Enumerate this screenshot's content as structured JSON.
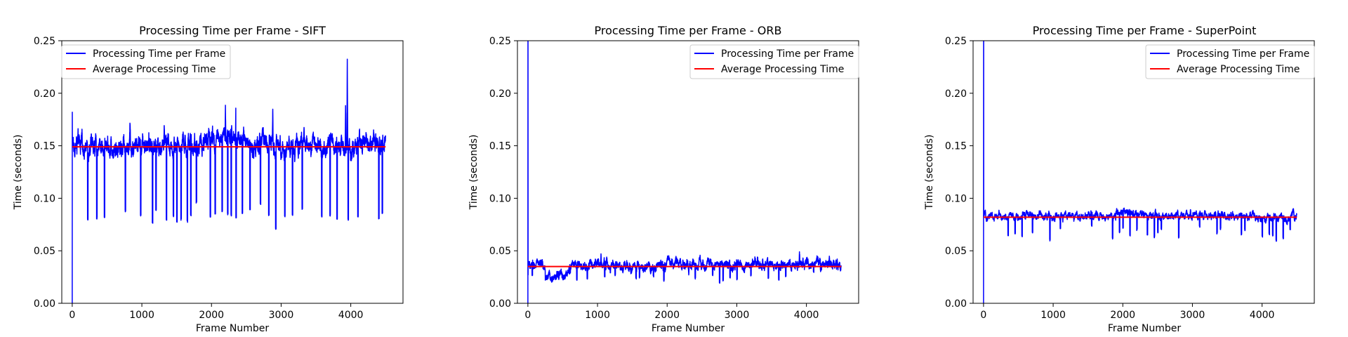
{
  "chart_data": [
    {
      "type": "line",
      "title": "Processing Time per Frame - SIFT",
      "xlabel": "Frame Number",
      "ylabel": "Time (seconds)",
      "xlim": [
        -150,
        4750
      ],
      "ylim": [
        0,
        0.25
      ],
      "xticks": [
        0,
        1000,
        2000,
        3000,
        4000
      ],
      "yticks": [
        0.0,
        0.05,
        0.1,
        0.15,
        0.2,
        0.25
      ],
      "xtick_labels": [
        "0",
        "1000",
        "2000",
        "3000",
        "4000"
      ],
      "ytick_labels": [
        "0.00",
        "0.05",
        "0.10",
        "0.15",
        "0.20",
        "0.25"
      ],
      "legend": "top-left",
      "series": [
        {
          "name": "Processing Time per Frame",
          "color": "#0000ff",
          "profile": {
            "frames": 4500,
            "base": 0.15,
            "jitter": 0.004,
            "start": [
              0.0,
              0.182,
              0.162,
              0.152
            ],
            "bands": [
              [
                1900,
                2550,
                0.008
              ],
              [
                2650,
                3000,
                0.004
              ],
              [
                3800,
                3950,
                0.003
              ]
            ],
            "bumps": [
              [
                2200,
                0.032
              ],
              [
                2350,
                0.03
              ],
              [
                2880,
                0.036
              ],
              [
                3950,
                0.081
              ],
              [
                3925,
                0.04
              ],
              [
                1100,
                0.018
              ],
              [
                1320,
                0.016
              ],
              [
                830,
                0.015
              ]
            ],
            "dips": [
              [
                220,
                0.08
              ],
              [
                350,
                0.081
              ],
              [
                460,
                0.082
              ],
              [
                760,
                0.088
              ],
              [
                980,
                0.084
              ],
              [
                1150,
                0.077
              ],
              [
                1200,
                0.089
              ],
              [
                1350,
                0.08
              ],
              [
                1450,
                0.083
              ],
              [
                1500,
                0.078
              ],
              [
                1560,
                0.08
              ],
              [
                1650,
                0.078
              ],
              [
                1700,
                0.084
              ],
              [
                1780,
                0.096
              ],
              [
                1980,
                0.083
              ],
              [
                2050,
                0.086
              ],
              [
                2150,
                0.088
              ],
              [
                2230,
                0.085
              ],
              [
                2280,
                0.084
              ],
              [
                2350,
                0.082
              ],
              [
                2440,
                0.086
              ],
              [
                2550,
                0.09
              ],
              [
                2700,
                0.095
              ],
              [
                2820,
                0.084
              ],
              [
                2920,
                0.071
              ],
              [
                3050,
                0.083
              ],
              [
                3160,
                0.084
              ],
              [
                3300,
                0.09
              ],
              [
                3580,
                0.083
              ],
              [
                3700,
                0.084
              ],
              [
                3800,
                0.081
              ],
              [
                3960,
                0.08
              ],
              [
                4100,
                0.083
              ],
              [
                4400,
                0.081
              ],
              [
                4450,
                0.086
              ]
            ]
          }
        },
        {
          "name": "Average Processing Time",
          "color": "#ff0000",
          "x": [
            0,
            4500
          ],
          "y": [
            0.149,
            0.149
          ]
        }
      ]
    },
    {
      "type": "line",
      "title": "Processing Time per Frame - ORB",
      "xlabel": "Frame Number",
      "ylabel": "Time (seconds)",
      "xlim": [
        -150,
        4750
      ],
      "ylim": [
        0,
        0.25
      ],
      "xticks": [
        0,
        1000,
        2000,
        3000,
        4000
      ],
      "yticks": [
        0.0,
        0.05,
        0.1,
        0.15,
        0.2,
        0.25
      ],
      "xtick_labels": [
        "0",
        "1000",
        "2000",
        "3000",
        "4000"
      ],
      "ytick_labels": [
        "0.00",
        "0.05",
        "0.10",
        "0.15",
        "0.20",
        "0.25"
      ],
      "legend": "top-right",
      "series": [
        {
          "name": "Processing Time per Frame",
          "color": "#0000ff",
          "profile": {
            "frames": 4500,
            "base": 0.036,
            "jitter": 0.002,
            "start": [
              0.0,
              0.25,
              0.25,
              0.027,
              0.036
            ],
            "bands": [
              [
                250,
                600,
                -0.01
              ],
              [
                1000,
                1200,
                0.001
              ],
              [
                2000,
                2200,
                0.002
              ],
              [
                4000,
                4200,
                0.003
              ]
            ],
            "bumps": [
              [
                3300,
                0.008
              ],
              [
                2250,
                0.007
              ],
              [
                3900,
                0.006
              ],
              [
                1050,
                0.006
              ]
            ],
            "dips": [
              [
                60,
                0.027
              ],
              [
                520,
                0.024
              ],
              [
                700,
                0.023
              ],
              [
                850,
                0.024
              ],
              [
                1100,
                0.026
              ],
              [
                1250,
                0.027
              ],
              [
                1550,
                0.024
              ],
              [
                1600,
                0.025
              ],
              [
                1800,
                0.026
              ],
              [
                1950,
                0.022
              ],
              [
                2400,
                0.024
              ],
              [
                2650,
                0.027
              ],
              [
                2750,
                0.02
              ],
              [
                2800,
                0.022
              ],
              [
                2900,
                0.025
              ],
              [
                3000,
                0.023
              ],
              [
                3200,
                0.027
              ],
              [
                3450,
                0.024
              ],
              [
                3600,
                0.023
              ],
              [
                3700,
                0.026
              ],
              [
                4100,
                0.03
              ],
              [
                4200,
                0.031
              ]
            ]
          }
        },
        {
          "name": "Average Processing Time",
          "color": "#ff0000",
          "x": [
            0,
            4500
          ],
          "y": [
            0.035,
            0.035
          ]
        }
      ]
    },
    {
      "type": "line",
      "title": "Processing Time per Frame - SuperPoint",
      "xlabel": "Frame Number",
      "ylabel": "Time (seconds)",
      "xlim": [
        -150,
        4750
      ],
      "ylim": [
        0,
        0.25
      ],
      "xticks": [
        0,
        1000,
        2000,
        3000,
        4000
      ],
      "yticks": [
        0.0,
        0.05,
        0.1,
        0.15,
        0.2,
        0.25
      ],
      "xtick_labels": [
        "0",
        "1000",
        "2000",
        "3000",
        "4000"
      ],
      "ytick_labels": [
        "0.00",
        "0.05",
        "0.10",
        "0.15",
        "0.20",
        "0.25"
      ],
      "legend": "top-right",
      "series": [
        {
          "name": "Processing Time per Frame",
          "color": "#0000ff",
          "profile": {
            "frames": 4500,
            "base": 0.083,
            "jitter": 0.0015,
            "start": [
              0.0,
              0.25,
              0.25,
              0.088,
              0.086
            ],
            "bands": [
              [
                1900,
                2300,
                0.003
              ],
              [
                3900,
                4400,
                -0.003
              ]
            ],
            "bumps": [
              [
                2150,
                0.007
              ],
              [
                4450,
                0.005
              ],
              [
                2500,
                0.004
              ]
            ],
            "dips": [
              [
                350,
                0.065
              ],
              [
                450,
                0.067
              ],
              [
                550,
                0.064
              ],
              [
                700,
                0.068
              ],
              [
                950,
                0.06
              ],
              [
                1100,
                0.072
              ],
              [
                1550,
                0.074
              ],
              [
                1850,
                0.062
              ],
              [
                1950,
                0.068
              ],
              [
                2000,
                0.072
              ],
              [
                2100,
                0.065
              ],
              [
                2200,
                0.07
              ],
              [
                2350,
                0.066
              ],
              [
                2450,
                0.063
              ],
              [
                2500,
                0.068
              ],
              [
                2550,
                0.071
              ],
              [
                2800,
                0.063
              ],
              [
                3100,
                0.073
              ],
              [
                3350,
                0.067
              ],
              [
                3400,
                0.071
              ],
              [
                3700,
                0.066
              ],
              [
                3750,
                0.07
              ],
              [
                4000,
                0.064
              ],
              [
                4100,
                0.066
              ],
              [
                4150,
                0.065
              ],
              [
                4200,
                0.06
              ],
              [
                4300,
                0.062
              ],
              [
                4400,
                0.071
              ]
            ]
          }
        },
        {
          "name": "Average Processing Time",
          "color": "#ff0000",
          "x": [
            0,
            4500
          ],
          "y": [
            0.082,
            0.082
          ]
        }
      ]
    }
  ]
}
